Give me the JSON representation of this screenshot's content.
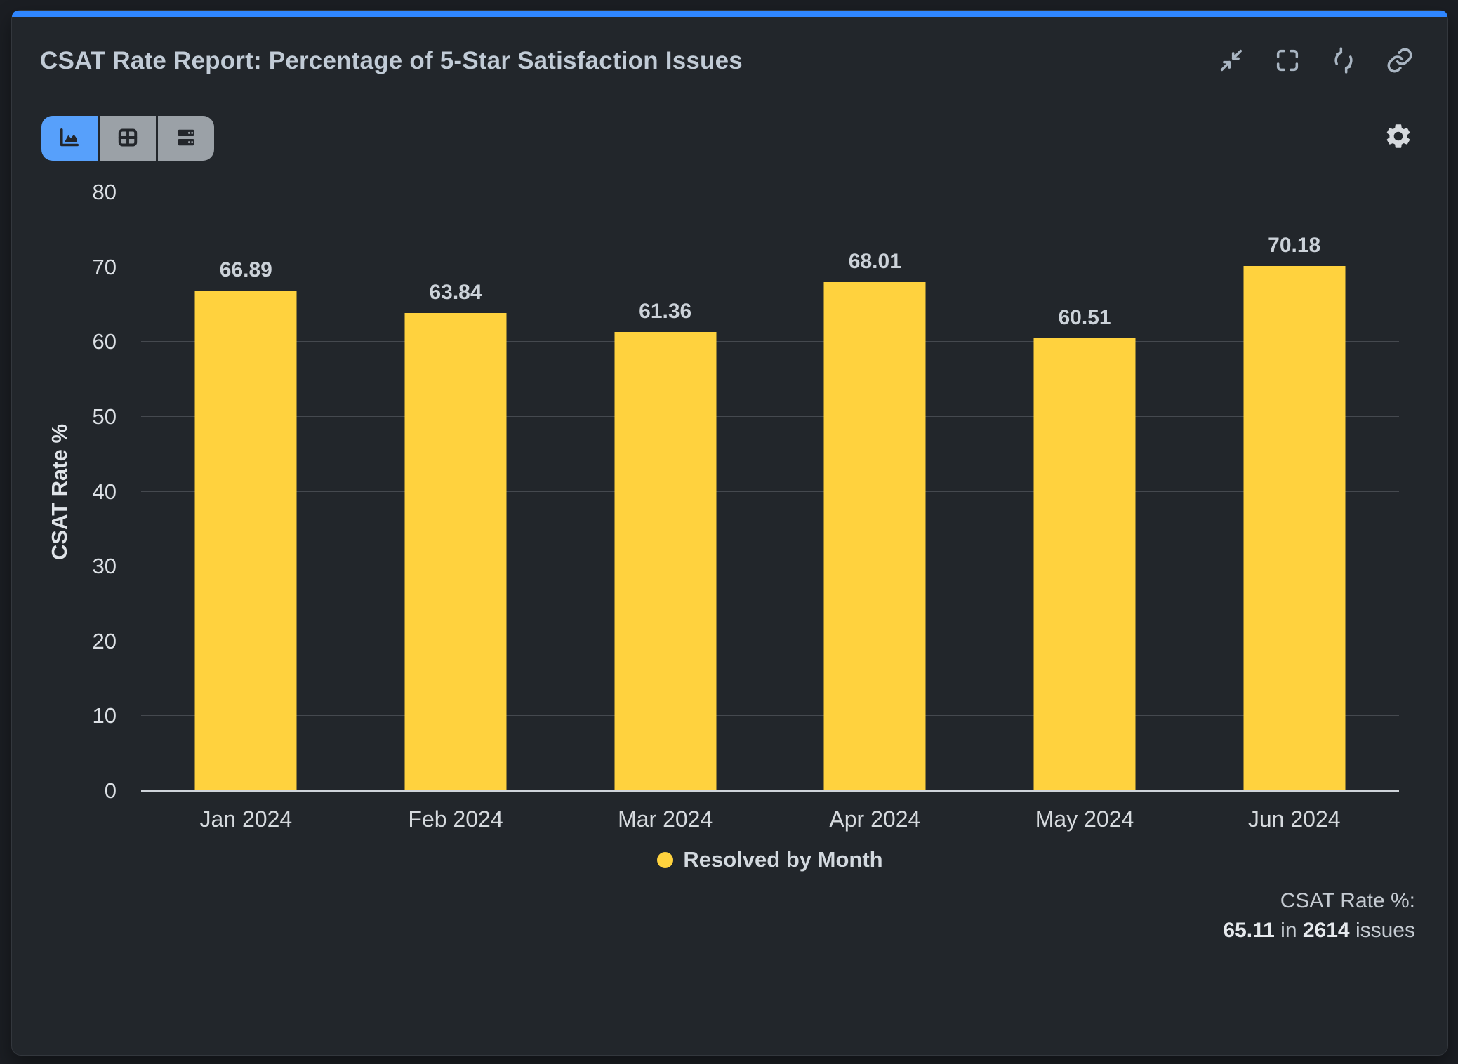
{
  "header": {
    "title": "CSAT Rate Report: Percentage of 5-Star Satisfaction Issues",
    "actions": [
      {
        "label": "Collapse",
        "icon": "collapse-icon"
      },
      {
        "label": "Fullscreen",
        "icon": "fullscreen-icon"
      },
      {
        "label": "Refresh",
        "icon": "refresh-icon"
      },
      {
        "label": "Copy link",
        "icon": "link-icon"
      }
    ]
  },
  "toolbar": {
    "view_options": [
      {
        "name": "chart-view",
        "icon": "area-chart-icon",
        "active": true
      },
      {
        "name": "table-view",
        "icon": "table-icon",
        "active": false
      },
      {
        "name": "list-view",
        "icon": "rows-icon",
        "active": false
      }
    ],
    "settings_icon": "gear-icon"
  },
  "chart_data": {
    "type": "bar",
    "title": "CSAT Rate Report: Percentage of 5-Star Satisfaction Issues",
    "categories": [
      "Jan 2024",
      "Feb 2024",
      "Mar 2024",
      "Apr 2024",
      "May 2024",
      "Jun 2024"
    ],
    "series": [
      {
        "name": "Resolved by Month",
        "color": "#ffd23e",
        "values": [
          66.89,
          63.84,
          61.36,
          68.01,
          60.51,
          70.18
        ]
      }
    ],
    "xlabel": "",
    "ylabel": "CSAT Rate %",
    "ylim": [
      0,
      80
    ],
    "yticks": [
      0,
      10,
      20,
      30,
      40,
      50,
      60,
      70,
      80
    ],
    "grid": true,
    "legend_position": "bottom",
    "value_labels": true
  },
  "legend": {
    "label": "Resolved by Month",
    "swatch_color": "#ffd23e"
  },
  "summary": {
    "label": "CSAT Rate %:",
    "value": "65.11",
    "infix": " in ",
    "count": "2614",
    "suffix": " issues"
  },
  "colors": {
    "accent_bar": "#2f86ff",
    "page_bg": "#1b1e23",
    "panel_bg": "#22262b",
    "bar": "#ffd23e",
    "active_toggle": "#57a0fb",
    "inactive_toggle": "#9ba1a7",
    "axis_line": "#cfd4da",
    "gridline": "#45494f",
    "title_text": "#c1cbd6"
  }
}
